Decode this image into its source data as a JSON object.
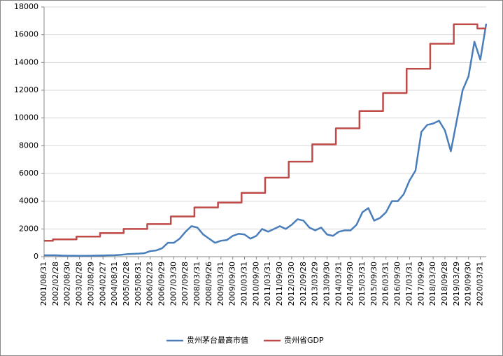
{
  "chart_data": {
    "type": "line",
    "categories": [
      "2001/08/31",
      null,
      "2002/02/28",
      null,
      "2002/08/30",
      null,
      "2003/02/28",
      null,
      "2003/08/29",
      null,
      "2004/02/27",
      null,
      "2004/08/31",
      null,
      "2005/02/28",
      null,
      "2005/08/31",
      null,
      "2006/02/23",
      null,
      "2006/09/29",
      null,
      "2007/03/30",
      null,
      "2007/09/28",
      null,
      "2008/03/31",
      null,
      "2008/09/26",
      null,
      "2009/03/31",
      null,
      "2009/09/30",
      null,
      "2010/03/31",
      null,
      "2010/09/30",
      null,
      "2011/03/31",
      null,
      "2011/09/30",
      null,
      "2012/03/30",
      null,
      "2012/09/28",
      null,
      "2013/03/29",
      null,
      "2013/09/30",
      null,
      "2014/03/31",
      null,
      "2014/09/30",
      null,
      "2015/03/31",
      null,
      "2015/09/30",
      null,
      "2016/03/31",
      null,
      "2016/09/30",
      null,
      "2017/03/31",
      null,
      "2017/09/29",
      null,
      "2018/03/30",
      null,
      "2018/09/28",
      null,
      "2019/03/29",
      null,
      "2019/09/30",
      null,
      "2020/03/31",
      null
    ],
    "series": [
      {
        "name": "贵州茅台最高市值",
        "color": "#4a7ebb",
        "step": false,
        "values": [
          100,
          100,
          100,
          80,
          70,
          70,
          60,
          60,
          70,
          80,
          90,
          100,
          110,
          130,
          180,
          200,
          220,
          250,
          400,
          450,
          600,
          1000,
          1000,
          1300,
          1800,
          2200,
          2100,
          1600,
          1300,
          1000,
          1150,
          1200,
          1500,
          1650,
          1600,
          1300,
          1500,
          2000,
          1800,
          2000,
          2200,
          2000,
          2300,
          2700,
          2600,
          2100,
          1900,
          2100,
          1600,
          1500,
          1800,
          1900,
          1900,
          2300,
          3200,
          3500,
          2600,
          2800,
          3200,
          4000,
          4000,
          4500,
          5500,
          6200,
          9000,
          9500,
          9600,
          9800,
          9100,
          7600,
          9800,
          12000,
          13000,
          15500,
          14200,
          16800
        ]
      },
      {
        "name": "贵州省GDP",
        "color": "#be4b48",
        "step": true,
        "values": [
          1150,
          1150,
          1250,
          1250,
          1250,
          1250,
          1450,
          1450,
          1450,
          1450,
          1700,
          1700,
          1700,
          1700,
          2000,
          2000,
          2000,
          2000,
          2350,
          2350,
          2350,
          2350,
          2900,
          2900,
          2900,
          2900,
          3550,
          3550,
          3550,
          3550,
          3900,
          3900,
          3900,
          3900,
          4600,
          4600,
          4600,
          4600,
          5700,
          5700,
          5700,
          5700,
          6850,
          6850,
          6850,
          6850,
          8100,
          8100,
          8100,
          8100,
          9250,
          9250,
          9250,
          9250,
          10500,
          10500,
          10500,
          10500,
          11800,
          11800,
          11800,
          11800,
          13550,
          13550,
          13550,
          13550,
          15350,
          15350,
          15350,
          15350,
          16750,
          16750,
          16750,
          16750,
          16450,
          16450
        ]
      }
    ],
    "ylim": [
      0,
      18000
    ],
    "yticks": [
      0,
      2000,
      4000,
      6000,
      8000,
      10000,
      12000,
      14000,
      16000,
      18000
    ],
    "grid": true,
    "legend": "bottom"
  }
}
